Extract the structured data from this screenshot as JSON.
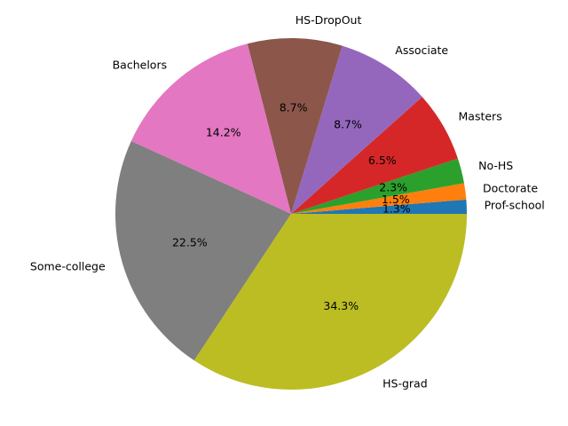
{
  "chart_data": {
    "type": "pie",
    "title": "",
    "start_angle_deg": 0,
    "direction": "counterclockwise",
    "slices": [
      {
        "label": "Prof-school",
        "value": 1.3,
        "pct_text": "1.3%",
        "color": "#1f77b4"
      },
      {
        "label": "Doctorate",
        "value": 1.5,
        "pct_text": "1.5%",
        "color": "#ff7f0e"
      },
      {
        "label": "No-HS",
        "value": 2.3,
        "pct_text": "2.3%",
        "color": "#2ca02c"
      },
      {
        "label": "Masters",
        "value": 6.5,
        "pct_text": "6.5%",
        "color": "#d62728"
      },
      {
        "label": "Associate",
        "value": 8.7,
        "pct_text": "8.7%",
        "color": "#9467bd"
      },
      {
        "label": "HS-DropOut",
        "value": 8.7,
        "pct_text": "8.7%",
        "color": "#8c564b"
      },
      {
        "label": "Bachelors",
        "value": 14.2,
        "pct_text": "14.2%",
        "color": "#e377c2"
      },
      {
        "label": "Some-college",
        "value": 22.5,
        "pct_text": "22.5%",
        "color": "#7f7f7f"
      },
      {
        "label": "HS-grad",
        "value": 34.3,
        "pct_text": "34.3%",
        "color": "#bcbd22"
      }
    ]
  }
}
